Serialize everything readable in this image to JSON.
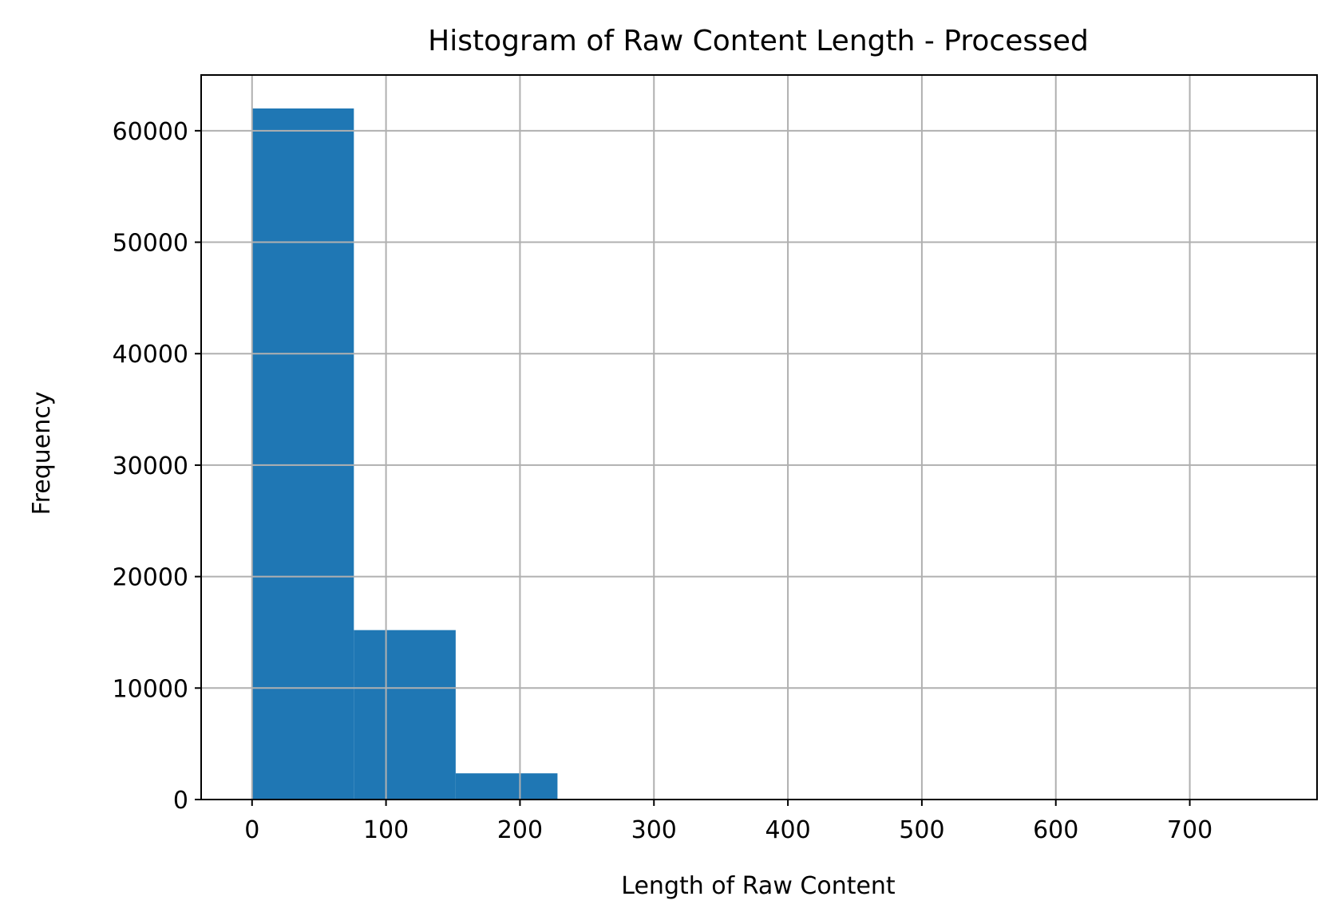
{
  "chart_data": {
    "type": "bar",
    "title": "Histogram of Raw Content Length - Processed",
    "xlabel": "Length of Raw Content",
    "ylabel": "Frequency",
    "xlim": [
      -38,
      795
    ],
    "ylim": [
      0,
      65000
    ],
    "x_ticks": [
      0,
      100,
      200,
      300,
      400,
      500,
      600,
      700
    ],
    "y_ticks": [
      0,
      10000,
      20000,
      30000,
      40000,
      50000,
      60000
    ],
    "bins": [
      {
        "start": 0,
        "end": 76,
        "value": 62000
      },
      {
        "start": 76,
        "end": 152,
        "value": 15200
      },
      {
        "start": 152,
        "end": 228,
        "value": 2350
      },
      {
        "start": 228,
        "end": 304,
        "value": 0
      },
      {
        "start": 304,
        "end": 380,
        "value": 0
      },
      {
        "start": 380,
        "end": 456,
        "value": 0
      },
      {
        "start": 456,
        "end": 532,
        "value": 0
      },
      {
        "start": 532,
        "end": 608,
        "value": 0
      },
      {
        "start": 608,
        "end": 684,
        "value": 0
      },
      {
        "start": 684,
        "end": 760,
        "value": 0
      }
    ],
    "bar_color": "#1f77b4",
    "grid": true,
    "legend": "none"
  }
}
